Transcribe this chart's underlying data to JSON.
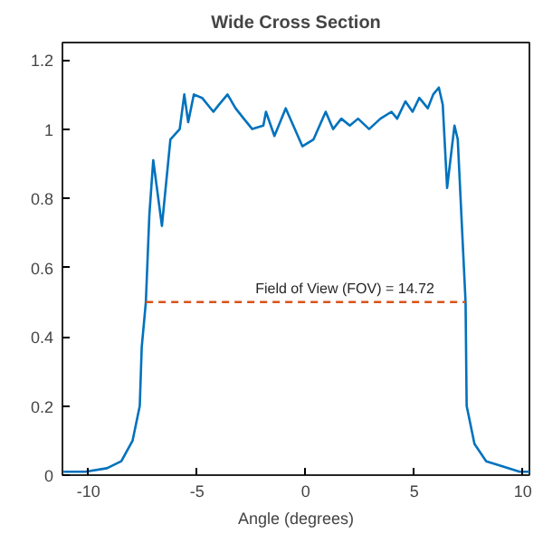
{
  "chart_data": {
    "type": "line",
    "title": "Wide Cross Section",
    "xlabel": "Angle (degrees)",
    "xlim": [
      -11.2,
      10.3
    ],
    "ylim": [
      0,
      1.25
    ],
    "xticks": [
      -10,
      -5,
      0,
      5,
      10
    ],
    "yticks": [
      0,
      0.2,
      0.4,
      0.6,
      0.8,
      1,
      1.2
    ],
    "grid": false,
    "series": [
      {
        "color": "#0072bd",
        "x": [
          -11.15,
          -10.15,
          -9.15,
          -8.49,
          -7.97,
          -7.64,
          -7.55,
          -7.36,
          -7.2,
          -7.02,
          -6.62,
          -6.23,
          -5.8,
          -5.59,
          -5.41,
          -5.15,
          -4.77,
          -4.25,
          -4.0,
          -3.6,
          -3.23,
          -2.85,
          -2.46,
          -1.95,
          -1.83,
          -1.44,
          -0.92,
          -0.15,
          0.36,
          0.92,
          1.26,
          1.64,
          2.03,
          2.41,
          2.92,
          3.44,
          3.95,
          4.21,
          4.59,
          4.92,
          5.23,
          5.62,
          5.87,
          6.13,
          6.31,
          6.51,
          6.85,
          7.0,
          7.36,
          7.41,
          7.77,
          8.31,
          8.82,
          9.85,
          10.3
        ],
        "values": [
          0.01,
          0.01,
          0.02,
          0.04,
          0.1,
          0.2,
          0.37,
          0.5,
          0.75,
          0.91,
          0.72,
          0.97,
          1.0,
          1.1,
          1.02,
          1.1,
          1.09,
          1.05,
          1.07,
          1.1,
          1.06,
          1.03,
          1.0,
          1.01,
          1.05,
          0.98,
          1.06,
          0.95,
          0.97,
          1.05,
          1.0,
          1.03,
          1.01,
          1.03,
          1.0,
          1.03,
          1.05,
          1.03,
          1.08,
          1.05,
          1.09,
          1.06,
          1.1,
          1.12,
          1.07,
          0.83,
          1.01,
          0.97,
          0.5,
          0.2,
          0.09,
          0.04,
          0.03,
          0.01,
          0.01
        ]
      },
      {
        "color": "#d95319",
        "line_style": "dashed",
        "x": [
          -7.36,
          7.36
        ],
        "values": [
          0.5,
          0.5
        ]
      }
    ],
    "annotations": [
      {
        "text": "Field of View (FOV) = 14.72",
        "x": 1.8,
        "y": 0.5
      }
    ]
  }
}
